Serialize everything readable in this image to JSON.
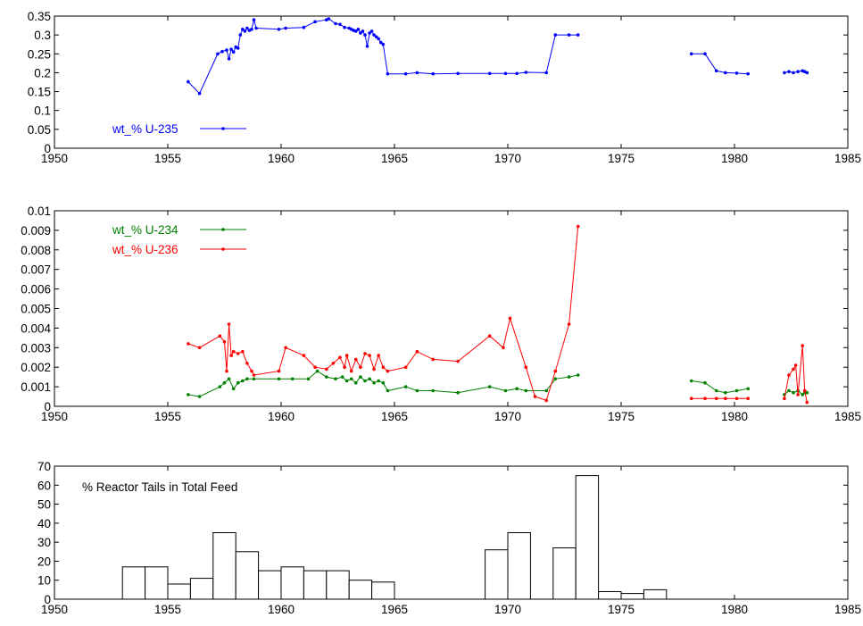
{
  "chart_data": [
    {
      "type": "line",
      "xlim": [
        1950,
        1985
      ],
      "ylim": [
        0,
        0.35
      ],
      "xticks": [
        "1950",
        "1955",
        "1960",
        "1965",
        "1970",
        "1975",
        "1980",
        "1985"
      ],
      "yticks": [
        "0",
        "0.05",
        "0.1",
        "0.15",
        "0.2",
        "0.25",
        "0.3",
        "0.35"
      ],
      "legend_position": "bottom-left",
      "series": [
        {
          "name": "wt_% U-235",
          "color": "#0000ff",
          "segments": [
            [
              [
                1955.9,
                0.176
              ],
              [
                1956.4,
                0.145
              ],
              [
                1957.2,
                0.25
              ],
              [
                1957.4,
                0.256
              ],
              [
                1957.6,
                0.26
              ],
              [
                1957.7,
                0.237
              ],
              [
                1957.8,
                0.262
              ],
              [
                1957.9,
                0.255
              ],
              [
                1958.0,
                0.268
              ],
              [
                1958.1,
                0.265
              ],
              [
                1958.2,
                0.3
              ],
              [
                1958.3,
                0.315
              ],
              [
                1958.4,
                0.31
              ],
              [
                1958.5,
                0.318
              ],
              [
                1958.6,
                0.312
              ],
              [
                1958.7,
                0.315
              ],
              [
                1958.8,
                0.34
              ],
              [
                1958.9,
                0.318
              ],
              [
                1959.9,
                0.315
              ],
              [
                1960.2,
                0.318
              ],
              [
                1961.0,
                0.32
              ],
              [
                1961.5,
                0.335
              ],
              [
                1962.0,
                0.34
              ],
              [
                1962.1,
                0.343
              ],
              [
                1962.4,
                0.33
              ],
              [
                1962.6,
                0.328
              ],
              [
                1962.8,
                0.32
              ],
              [
                1963.0,
                0.318
              ],
              [
                1963.1,
                0.315
              ],
              [
                1963.2,
                0.312
              ],
              [
                1963.3,
                0.31
              ],
              [
                1963.4,
                0.315
              ],
              [
                1963.5,
                0.305
              ],
              [
                1963.6,
                0.31
              ],
              [
                1963.7,
                0.3
              ],
              [
                1963.8,
                0.27
              ],
              [
                1963.9,
                0.305
              ],
              [
                1964.0,
                0.31
              ],
              [
                1964.1,
                0.3
              ],
              [
                1964.2,
                0.295
              ],
              [
                1964.3,
                0.29
              ],
              [
                1964.4,
                0.28
              ],
              [
                1964.5,
                0.275
              ],
              [
                1964.7,
                0.197
              ],
              [
                1965.5,
                0.197
              ],
              [
                1966.0,
                0.2
              ],
              [
                1966.7,
                0.197
              ],
              [
                1967.8,
                0.198
              ],
              [
                1969.2,
                0.198
              ],
              [
                1969.9,
                0.198
              ],
              [
                1970.4,
                0.198
              ],
              [
                1970.8,
                0.201
              ],
              [
                1971.7,
                0.2
              ],
              [
                1972.1,
                0.3
              ],
              [
                1972.7,
                0.3
              ],
              [
                1973.1,
                0.3
              ]
            ],
            [
              [
                1978.1,
                0.25
              ],
              [
                1978.7,
                0.25
              ],
              [
                1979.2,
                0.205
              ],
              [
                1979.6,
                0.2
              ],
              [
                1980.1,
                0.199
              ],
              [
                1980.6,
                0.197
              ]
            ],
            [
              [
                1982.2,
                0.2
              ],
              [
                1982.4,
                0.203
              ],
              [
                1982.6,
                0.2
              ],
              [
                1982.8,
                0.203
              ],
              [
                1983.0,
                0.205
              ],
              [
                1983.1,
                0.203
              ],
              [
                1983.2,
                0.2
              ]
            ]
          ]
        }
      ]
    },
    {
      "type": "line",
      "xlim": [
        1950,
        1985
      ],
      "ylim": [
        0,
        0.01
      ],
      "xticks": [
        "1950",
        "1955",
        "1960",
        "1965",
        "1970",
        "1975",
        "1980",
        "1985"
      ],
      "yticks": [
        "0",
        "0.001",
        "0.002",
        "0.003",
        "0.004",
        "0.005",
        "0.006",
        "0.007",
        "0.008",
        "0.009",
        "0.01"
      ],
      "legend_position": "top-left",
      "series": [
        {
          "name": "wt_% U-234",
          "color": "#008000",
          "segments": [
            [
              [
                1955.9,
                0.0006
              ],
              [
                1956.4,
                0.0005
              ],
              [
                1957.3,
                0.001
              ],
              [
                1957.5,
                0.0012
              ],
              [
                1957.7,
                0.0014
              ],
              [
                1957.9,
                0.0009
              ],
              [
                1958.1,
                0.0012
              ],
              [
                1958.3,
                0.0013
              ],
              [
                1958.5,
                0.0014
              ],
              [
                1958.8,
                0.0014
              ],
              [
                1959.9,
                0.0014
              ],
              [
                1960.5,
                0.0014
              ],
              [
                1961.2,
                0.0014
              ],
              [
                1961.6,
                0.0018
              ],
              [
                1962.0,
                0.0015
              ],
              [
                1962.4,
                0.0014
              ],
              [
                1962.7,
                0.0015
              ],
              [
                1962.9,
                0.0013
              ],
              [
                1963.1,
                0.0014
              ],
              [
                1963.3,
                0.0012
              ],
              [
                1963.5,
                0.0015
              ],
              [
                1963.7,
                0.0013
              ],
              [
                1963.9,
                0.0014
              ],
              [
                1964.1,
                0.0012
              ],
              [
                1964.3,
                0.0013
              ],
              [
                1964.5,
                0.0012
              ],
              [
                1964.7,
                0.0008
              ],
              [
                1965.5,
                0.001
              ],
              [
                1966.0,
                0.0008
              ],
              [
                1966.7,
                0.0008
              ],
              [
                1967.8,
                0.0007
              ],
              [
                1969.2,
                0.001
              ],
              [
                1969.9,
                0.0008
              ],
              [
                1970.4,
                0.0009
              ],
              [
                1970.8,
                0.0008
              ],
              [
                1971.7,
                0.0008
              ],
              [
                1972.1,
                0.0014
              ],
              [
                1972.7,
                0.0015
              ],
              [
                1973.1,
                0.0016
              ]
            ],
            [
              [
                1978.1,
                0.0013
              ],
              [
                1978.7,
                0.0012
              ],
              [
                1979.2,
                0.0008
              ],
              [
                1979.6,
                0.0007
              ],
              [
                1980.1,
                0.0008
              ],
              [
                1980.6,
                0.0009
              ]
            ],
            [
              [
                1982.2,
                0.0006
              ],
              [
                1982.4,
                0.0008
              ],
              [
                1982.6,
                0.0007
              ],
              [
                1982.8,
                0.0008
              ],
              [
                1983.0,
                0.0006
              ],
              [
                1983.1,
                0.0007
              ],
              [
                1983.2,
                0.0007
              ]
            ]
          ]
        },
        {
          "name": "wt_% U-236",
          "color": "#ff0000",
          "segments": [
            [
              [
                1955.9,
                0.0032
              ],
              [
                1956.4,
                0.003
              ],
              [
                1957.3,
                0.0036
              ],
              [
                1957.5,
                0.0033
              ],
              [
                1957.6,
                0.0018
              ],
              [
                1957.7,
                0.0042
              ],
              [
                1957.8,
                0.0026
              ],
              [
                1957.9,
                0.0028
              ],
              [
                1958.1,
                0.0027
              ],
              [
                1958.3,
                0.0028
              ],
              [
                1958.5,
                0.0022
              ],
              [
                1958.7,
                0.0018
              ],
              [
                1958.8,
                0.0016
              ],
              [
                1959.9,
                0.0018
              ],
              [
                1960.2,
                0.003
              ],
              [
                1961.0,
                0.0026
              ],
              [
                1961.5,
                0.002
              ],
              [
                1962.0,
                0.0019
              ],
              [
                1962.3,
                0.0022
              ],
              [
                1962.6,
                0.0025
              ],
              [
                1962.8,
                0.002
              ],
              [
                1962.9,
                0.0026
              ],
              [
                1963.1,
                0.0018
              ],
              [
                1963.3,
                0.0024
              ],
              [
                1963.5,
                0.002
              ],
              [
                1963.7,
                0.0027
              ],
              [
                1963.9,
                0.0026
              ],
              [
                1964.1,
                0.0019
              ],
              [
                1964.3,
                0.0026
              ],
              [
                1964.5,
                0.002
              ],
              [
                1964.7,
                0.0018
              ],
              [
                1965.5,
                0.002
              ],
              [
                1966.0,
                0.0028
              ],
              [
                1966.7,
                0.0024
              ],
              [
                1967.8,
                0.0023
              ],
              [
                1969.2,
                0.0036
              ],
              [
                1969.8,
                0.003
              ],
              [
                1970.1,
                0.0045
              ],
              [
                1970.8,
                0.002
              ],
              [
                1971.2,
                0.0005
              ],
              [
                1971.7,
                0.0003
              ],
              [
                1972.1,
                0.0018
              ],
              [
                1972.7,
                0.0042
              ],
              [
                1973.1,
                0.0092
              ]
            ],
            [
              [
                1978.1,
                0.0004
              ],
              [
                1978.7,
                0.0004
              ],
              [
                1979.2,
                0.0004
              ],
              [
                1979.6,
                0.0004
              ],
              [
                1980.1,
                0.0004
              ],
              [
                1980.6,
                0.0004
              ]
            ],
            [
              [
                1982.2,
                0.0004
              ],
              [
                1982.4,
                0.0016
              ],
              [
                1982.6,
                0.0019
              ],
              [
                1982.7,
                0.0021
              ],
              [
                1982.8,
                0.0006
              ],
              [
                1983.0,
                0.0031
              ],
              [
                1983.1,
                0.0008
              ],
              [
                1983.2,
                0.0002
              ]
            ]
          ]
        }
      ]
    },
    {
      "type": "bar",
      "xlim": [
        1950,
        1985
      ],
      "ylim": [
        0,
        70
      ],
      "xticks": [
        "1950",
        "1955",
        "1960",
        "1965",
        "1970",
        "1975",
        "1980",
        "1985"
      ],
      "yticks": [
        "0",
        "10",
        "20",
        "30",
        "40",
        "50",
        "60",
        "70"
      ],
      "legend_position": "top-left",
      "series": [
        {
          "name": "% Reactor Tails in Total Feed",
          "color": "#000000",
          "bin_width": 1,
          "x": [
            1953,
            1954,
            1955,
            1956,
            1957,
            1958,
            1959,
            1960,
            1961,
            1962,
            1963,
            1964,
            1965,
            1966,
            1967,
            1968,
            1969,
            1970,
            1971,
            1972,
            1973,
            1974,
            1975,
            1976
          ],
          "values": [
            17,
            17,
            8,
            11,
            35,
            25,
            15,
            17,
            15,
            15,
            10,
            9,
            0,
            0,
            0,
            0,
            26,
            35,
            0,
            27,
            65,
            4,
            3,
            5
          ]
        }
      ]
    }
  ]
}
